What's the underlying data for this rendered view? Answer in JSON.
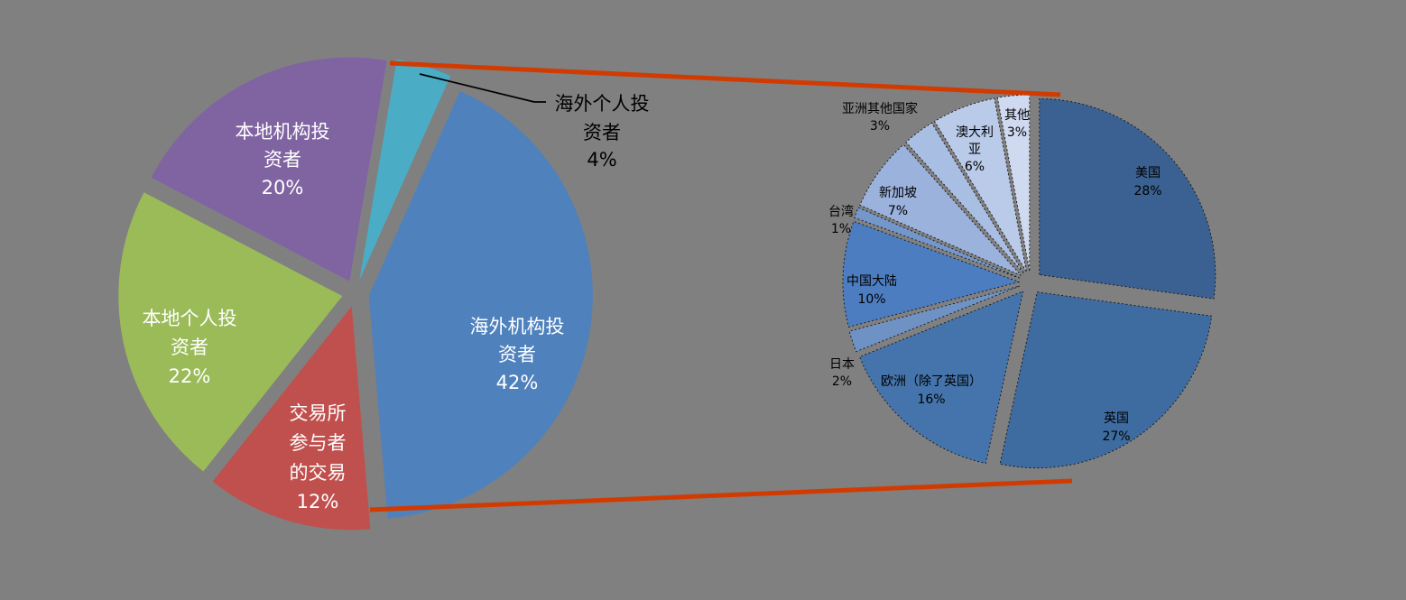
{
  "background_color": "#808080",
  "annotation": {
    "connector_color": "#D13B01",
    "leader_line_color": "#000000",
    "connector_count": 2
  },
  "chart_data": [
    {
      "type": "pie",
      "id": "investor-composition-pie",
      "legend_position": "none",
      "exploded": true,
      "slices": [
        {
          "label": "海外机构投资者",
          "value_pct": 42,
          "display": "42%",
          "color": "#4F81BD",
          "label_color": "#FFFFFF",
          "label_placement": "inside",
          "label_lines": [
            "海外机构投",
            "资者",
            "42%"
          ]
        },
        {
          "label": "交易所参与者的交易",
          "value_pct": 12,
          "display": "12%",
          "color": "#C0504D",
          "label_color": "#FFFFFF",
          "label_placement": "inside",
          "label_lines": [
            "交易所",
            "参与者",
            "的交易",
            "12%"
          ]
        },
        {
          "label": "本地个人投资者",
          "value_pct": 22,
          "display": "22%",
          "color": "#9BBB59",
          "label_color": "#FFFFFF",
          "label_placement": "inside",
          "label_lines": [
            "本地个人投",
            "资者",
            "22%"
          ]
        },
        {
          "label": "本地机构投资者",
          "value_pct": 20,
          "display": "20%",
          "color": "#8064A2",
          "label_color": "#FFFFFF",
          "label_placement": "inside",
          "label_lines": [
            "本地机构投",
            "资者",
            "20%"
          ]
        },
        {
          "label": "海外个人投资者",
          "value_pct": 4,
          "display": "4%",
          "color": "#4BACC6",
          "label_color": "#000000",
          "label_placement": "callout",
          "label_lines": [
            "海外个人投",
            "资者",
            "4%"
          ]
        }
      ]
    },
    {
      "type": "pie",
      "id": "overseas-investors-by-region-pie",
      "legend_position": "none",
      "exploded": true,
      "slices": [
        {
          "label": "美国",
          "value_pct": 28,
          "display": "28%",
          "color": "#3A6191",
          "label_color": "#000000",
          "label_placement": "inside",
          "label_lines": [
            "美国",
            "28%"
          ]
        },
        {
          "label": "英国",
          "value_pct": 27,
          "display": "27%",
          "color": "#3E6CA0",
          "label_color": "#000000",
          "label_placement": "inside",
          "label_lines": [
            "英国",
            "27%"
          ]
        },
        {
          "label": "欧洲（除了英国）",
          "value_pct": 16,
          "display": "16%",
          "color": "#4474AB",
          "label_color": "#000000",
          "label_placement": "inside",
          "label_lines": [
            "欧洲（除了英国）",
            "16%"
          ]
        },
        {
          "label": "日本",
          "value_pct": 2,
          "display": "2%",
          "color": "#6F92C4",
          "label_color": "#000000",
          "label_placement": "outside",
          "label_lines": [
            "日本",
            "2%"
          ]
        },
        {
          "label": "中国大陆",
          "value_pct": 10,
          "display": "10%",
          "color": "#4C7DC0",
          "label_color": "#000000",
          "label_placement": "inside",
          "label_lines": [
            "中国大陆",
            "10%"
          ]
        },
        {
          "label": "台湾",
          "value_pct": 1,
          "display": "1%",
          "color": "#7396CB",
          "label_color": "#000000",
          "label_placement": "outside",
          "label_lines": [
            "台湾",
            "1%"
          ]
        },
        {
          "label": "新加坡",
          "value_pct": 7,
          "display": "7%",
          "color": "#9BB2DC",
          "label_color": "#000000",
          "label_placement": "inside",
          "label_lines": [
            "新加坡",
            "7%"
          ]
        },
        {
          "label": "亚洲其他国家",
          "value_pct": 3,
          "display": "3%",
          "color": "#A9BEE3",
          "label_color": "#000000",
          "label_placement": "outside",
          "label_lines": [
            "亚洲其他国家",
            "3%"
          ]
        },
        {
          "label": "澳大利亚",
          "value_pct": 6,
          "display": "6%",
          "color": "#BACAE9",
          "label_color": "#000000",
          "label_placement": "inside",
          "label_lines": [
            "澳大利",
            "亚",
            "6%"
          ]
        },
        {
          "label": "其他",
          "value_pct": 3,
          "display": "3%",
          "color": "#CFDAF0",
          "label_color": "#000000",
          "label_placement": "inside",
          "label_lines": [
            "其他",
            "3%"
          ]
        }
      ]
    }
  ]
}
